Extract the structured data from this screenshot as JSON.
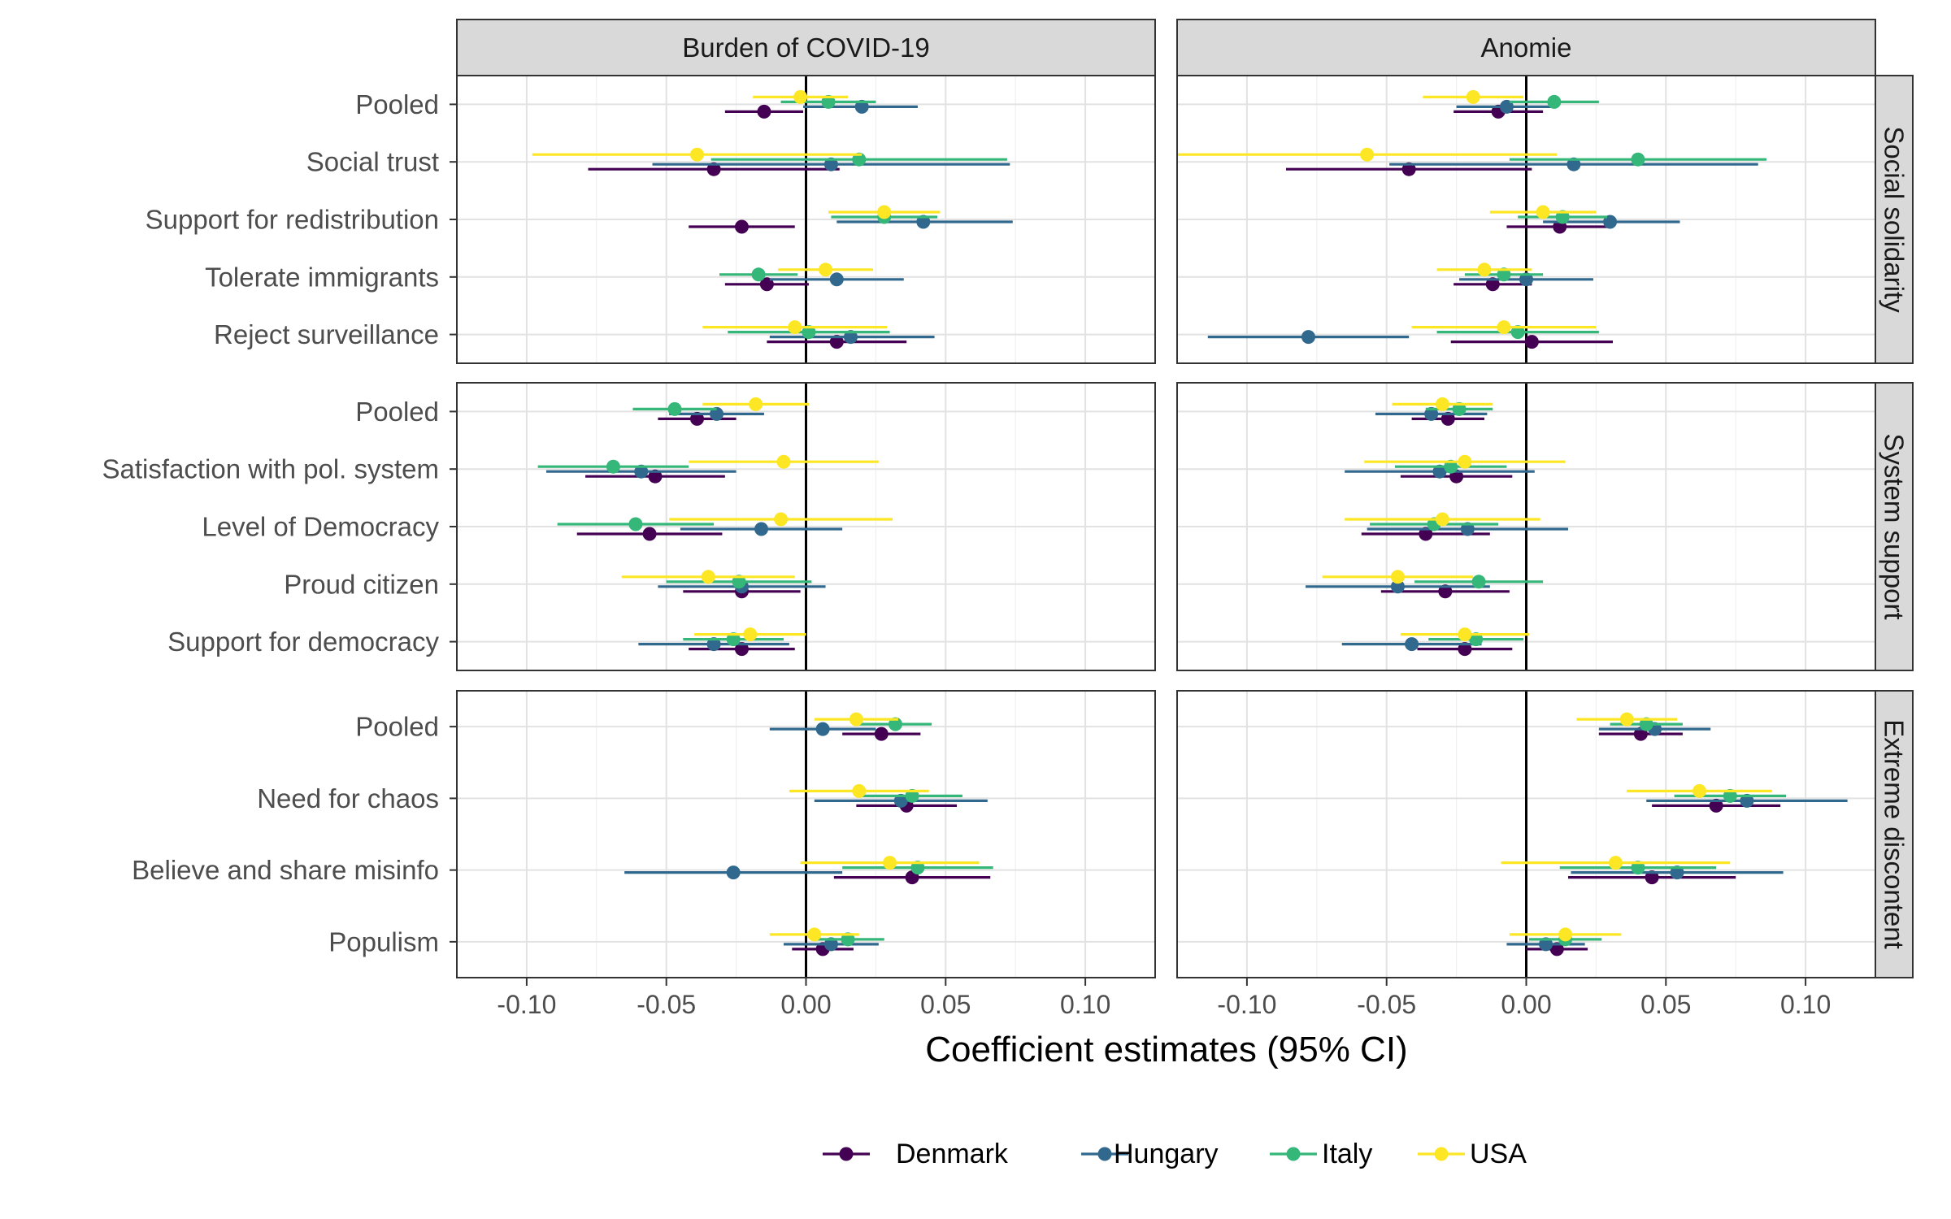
{
  "chart_data": {
    "type": "scatter",
    "subtype": "dot-and-whisker (coefficient plot), faceted",
    "title": "",
    "xlabel": "Coefficient estimates (95% CI)",
    "ylabel": "",
    "xlim": [
      -0.125,
      0.125
    ],
    "xticks": [
      -0.1,
      -0.05,
      0.0,
      0.05,
      0.1
    ],
    "xtick_labels": [
      "-0.10",
      "-0.05",
      "0.00",
      "0.05",
      "0.10"
    ],
    "reference_line_x": 0,
    "grid": true,
    "legend_position": "bottom",
    "facet_columns": [
      "Burden of COVID-19",
      "Anomie"
    ],
    "facet_rows": [
      {
        "label": "Social solidarity",
        "outcomes": [
          "Pooled",
          "Social trust",
          "Support for redistribution",
          "Tolerate immigrants",
          "Reject surveillance"
        ]
      },
      {
        "label": "System support",
        "outcomes": [
          "Pooled",
          "Satisfaction with pol. system",
          "Level of Democracy",
          "Proud citizen",
          "Support for democracy"
        ]
      },
      {
        "label": "Extreme discontent",
        "outcomes": [
          "Pooled",
          "Need for chaos",
          "Believe and share misinfo",
          "Populism"
        ]
      }
    ],
    "series": [
      {
        "name": "Denmark",
        "color": "#440154"
      },
      {
        "name": "Hungary",
        "color": "#31688e"
      },
      {
        "name": "Italy",
        "color": "#35b779"
      },
      {
        "name": "USA",
        "color": "#fde725"
      }
    ],
    "estimates": [
      [
        {
          "Pooled": {
            "Denmark": [
              -0.015,
              -0.029,
              -0.001
            ],
            "Hungary": [
              0.02,
              -0.001,
              0.04
            ],
            "Italy": [
              0.008,
              -0.009,
              0.025
            ],
            "USA": [
              -0.002,
              -0.019,
              0.015
            ]
          },
          "Social trust": {
            "Denmark": [
              -0.033,
              -0.078,
              0.012
            ],
            "Hungary": [
              0.009,
              -0.055,
              0.073
            ],
            "Italy": [
              0.019,
              -0.034,
              0.072
            ],
            "USA": [
              -0.039,
              -0.098,
              0.02
            ]
          },
          "Support for redistribution": {
            "Denmark": [
              -0.023,
              -0.042,
              -0.004
            ],
            "Hungary": [
              0.042,
              0.011,
              0.074
            ],
            "Italy": [
              0.028,
              0.009,
              0.047
            ],
            "USA": [
              0.028,
              0.008,
              0.048
            ]
          },
          "Tolerate immigrants": {
            "Denmark": [
              -0.014,
              -0.029,
              0.001
            ],
            "Hungary": [
              0.011,
              -0.013,
              0.035
            ],
            "Italy": [
              -0.017,
              -0.031,
              -0.003
            ],
            "USA": [
              0.007,
              -0.01,
              0.024
            ]
          },
          "Reject surveillance": {
            "Denmark": [
              0.011,
              -0.014,
              0.036
            ],
            "Hungary": [
              0.016,
              -0.013,
              0.046
            ],
            "Italy": [
              0.001,
              -0.028,
              0.03
            ],
            "USA": [
              -0.004,
              -0.037,
              0.029
            ]
          }
        },
        {
          "Pooled": {
            "Denmark": [
              -0.01,
              -0.026,
              0.006
            ],
            "Hungary": [
              -0.007,
              -0.025,
              0.011
            ],
            "Italy": [
              0.01,
              -0.006,
              0.026
            ],
            "USA": [
              -0.019,
              -0.037,
              -0.001
            ]
          },
          "Social trust": {
            "Denmark": [
              -0.042,
              -0.086,
              0.002
            ],
            "Hungary": [
              0.017,
              -0.049,
              0.083
            ],
            "Italy": [
              0.04,
              -0.006,
              0.086
            ],
            "USA": [
              -0.057,
              -0.125,
              0.011
            ]
          },
          "Support for redistribution": {
            "Denmark": [
              0.012,
              -0.007,
              0.031
            ],
            "Hungary": [
              0.03,
              0.006,
              0.055
            ],
            "Italy": [
              0.013,
              -0.003,
              0.029
            ],
            "USA": [
              0.006,
              -0.013,
              0.025
            ]
          },
          "Tolerate immigrants": {
            "Denmark": [
              -0.012,
              -0.026,
              0.002
            ],
            "Hungary": [
              0.0,
              -0.024,
              0.024
            ],
            "Italy": [
              -0.008,
              -0.022,
              0.006
            ],
            "USA": [
              -0.015,
              -0.032,
              0.002
            ]
          },
          "Reject surveillance": {
            "Denmark": [
              0.002,
              -0.027,
              0.031
            ],
            "Hungary": [
              -0.078,
              -0.114,
              -0.042
            ],
            "Italy": [
              -0.003,
              -0.032,
              0.026
            ],
            "USA": [
              -0.008,
              -0.041,
              0.025
            ]
          }
        }
      ],
      [
        {
          "Pooled": {
            "Denmark": [
              -0.039,
              -0.053,
              -0.025
            ],
            "Hungary": [
              -0.032,
              -0.049,
              -0.015
            ],
            "Italy": [
              -0.047,
              -0.062,
              -0.032
            ],
            "USA": [
              -0.018,
              -0.037,
              0.001
            ]
          },
          "Satisfaction with pol. system": {
            "Denmark": [
              -0.054,
              -0.079,
              -0.029
            ],
            "Hungary": [
              -0.059,
              -0.093,
              -0.025
            ],
            "Italy": [
              -0.069,
              -0.096,
              -0.042
            ],
            "USA": [
              -0.008,
              -0.042,
              0.026
            ]
          },
          "Level of Democracy": {
            "Denmark": [
              -0.056,
              -0.082,
              -0.03
            ],
            "Hungary": [
              -0.016,
              -0.045,
              0.013
            ],
            "Italy": [
              -0.061,
              -0.089,
              -0.033
            ],
            "USA": [
              -0.009,
              -0.049,
              0.031
            ]
          },
          "Proud citizen": {
            "Denmark": [
              -0.023,
              -0.044,
              -0.002
            ],
            "Hungary": [
              -0.023,
              -0.053,
              0.007
            ],
            "Italy": [
              -0.024,
              -0.05,
              0.002
            ],
            "USA": [
              -0.035,
              -0.066,
              -0.004
            ]
          },
          "Support for democracy": {
            "Denmark": [
              -0.023,
              -0.042,
              -0.004
            ],
            "Hungary": [
              -0.033,
              -0.06,
              -0.006
            ],
            "Italy": [
              -0.026,
              -0.044,
              -0.008
            ],
            "USA": [
              -0.02,
              -0.04,
              0.0
            ]
          }
        },
        {
          "Pooled": {
            "Denmark": [
              -0.028,
              -0.041,
              -0.015
            ],
            "Hungary": [
              -0.034,
              -0.054,
              -0.014
            ],
            "Italy": [
              -0.024,
              -0.036,
              -0.012
            ],
            "USA": [
              -0.03,
              -0.048,
              -0.012
            ]
          },
          "Satisfaction with pol. system": {
            "Denmark": [
              -0.025,
              -0.045,
              -0.005
            ],
            "Hungary": [
              -0.031,
              -0.065,
              0.003
            ],
            "Italy": [
              -0.027,
              -0.047,
              -0.007
            ],
            "USA": [
              -0.022,
              -0.058,
              0.014
            ]
          },
          "Level of Democracy": {
            "Denmark": [
              -0.036,
              -0.059,
              -0.013
            ],
            "Hungary": [
              -0.021,
              -0.057,
              0.015
            ],
            "Italy": [
              -0.033,
              -0.056,
              -0.01
            ],
            "USA": [
              -0.03,
              -0.065,
              0.005
            ]
          },
          "Proud citizen": {
            "Denmark": [
              -0.029,
              -0.052,
              -0.006
            ],
            "Hungary": [
              -0.046,
              -0.079,
              -0.013
            ],
            "Italy": [
              -0.017,
              -0.04,
              0.006
            ],
            "USA": [
              -0.046,
              -0.073,
              -0.019
            ]
          },
          "Support for democracy": {
            "Denmark": [
              -0.022,
              -0.039,
              -0.005
            ],
            "Hungary": [
              -0.041,
              -0.066,
              -0.016
            ],
            "Italy": [
              -0.018,
              -0.035,
              -0.001
            ],
            "USA": [
              -0.022,
              -0.045,
              0.001
            ]
          }
        }
      ],
      [
        {
          "Pooled": {
            "Denmark": [
              0.027,
              0.013,
              0.041
            ],
            "Hungary": [
              0.006,
              -0.013,
              0.025
            ],
            "Italy": [
              0.032,
              0.019,
              0.045
            ],
            "USA": [
              0.018,
              0.003,
              0.033
            ]
          },
          "Need for chaos": {
            "Denmark": [
              0.036,
              0.018,
              0.054
            ],
            "Hungary": [
              0.034,
              0.003,
              0.065
            ],
            "Italy": [
              0.038,
              0.02,
              0.056
            ],
            "USA": [
              0.019,
              -0.006,
              0.044
            ]
          },
          "Believe and share misinfo": {
            "Denmark": [
              0.038,
              0.01,
              0.066
            ],
            "Hungary": [
              -0.026,
              -0.065,
              0.013
            ],
            "Italy": [
              0.04,
              0.013,
              0.067
            ],
            "USA": [
              0.03,
              -0.002,
              0.062
            ]
          },
          "Populism": {
            "Denmark": [
              0.006,
              -0.005,
              0.017
            ],
            "Hungary": [
              0.009,
              -0.008,
              0.026
            ],
            "Italy": [
              0.015,
              0.002,
              0.028
            ],
            "USA": [
              0.003,
              -0.013,
              0.019
            ]
          }
        },
        {
          "Pooled": {
            "Denmark": [
              0.041,
              0.026,
              0.056
            ],
            "Hungary": [
              0.046,
              0.026,
              0.066
            ],
            "Italy": [
              0.043,
              0.03,
              0.056
            ],
            "USA": [
              0.036,
              0.018,
              0.054
            ]
          },
          "Need for chaos": {
            "Denmark": [
              0.068,
              0.045,
              0.091
            ],
            "Hungary": [
              0.079,
              0.043,
              0.115
            ],
            "Italy": [
              0.073,
              0.053,
              0.093
            ],
            "USA": [
              0.062,
              0.036,
              0.088
            ]
          },
          "Believe and share misinfo": {
            "Denmark": [
              0.045,
              0.015,
              0.075
            ],
            "Hungary": [
              0.054,
              0.016,
              0.092
            ],
            "Italy": [
              0.04,
              0.012,
              0.068
            ],
            "USA": [
              0.032,
              -0.009,
              0.073
            ]
          },
          "Populism": {
            "Denmark": [
              0.011,
              0.0,
              0.022
            ],
            "Hungary": [
              0.007,
              -0.007,
              0.021
            ],
            "Italy": [
              0.014,
              0.001,
              0.027
            ],
            "USA": [
              0.014,
              -0.006,
              0.034
            ]
          }
        }
      ]
    ]
  }
}
